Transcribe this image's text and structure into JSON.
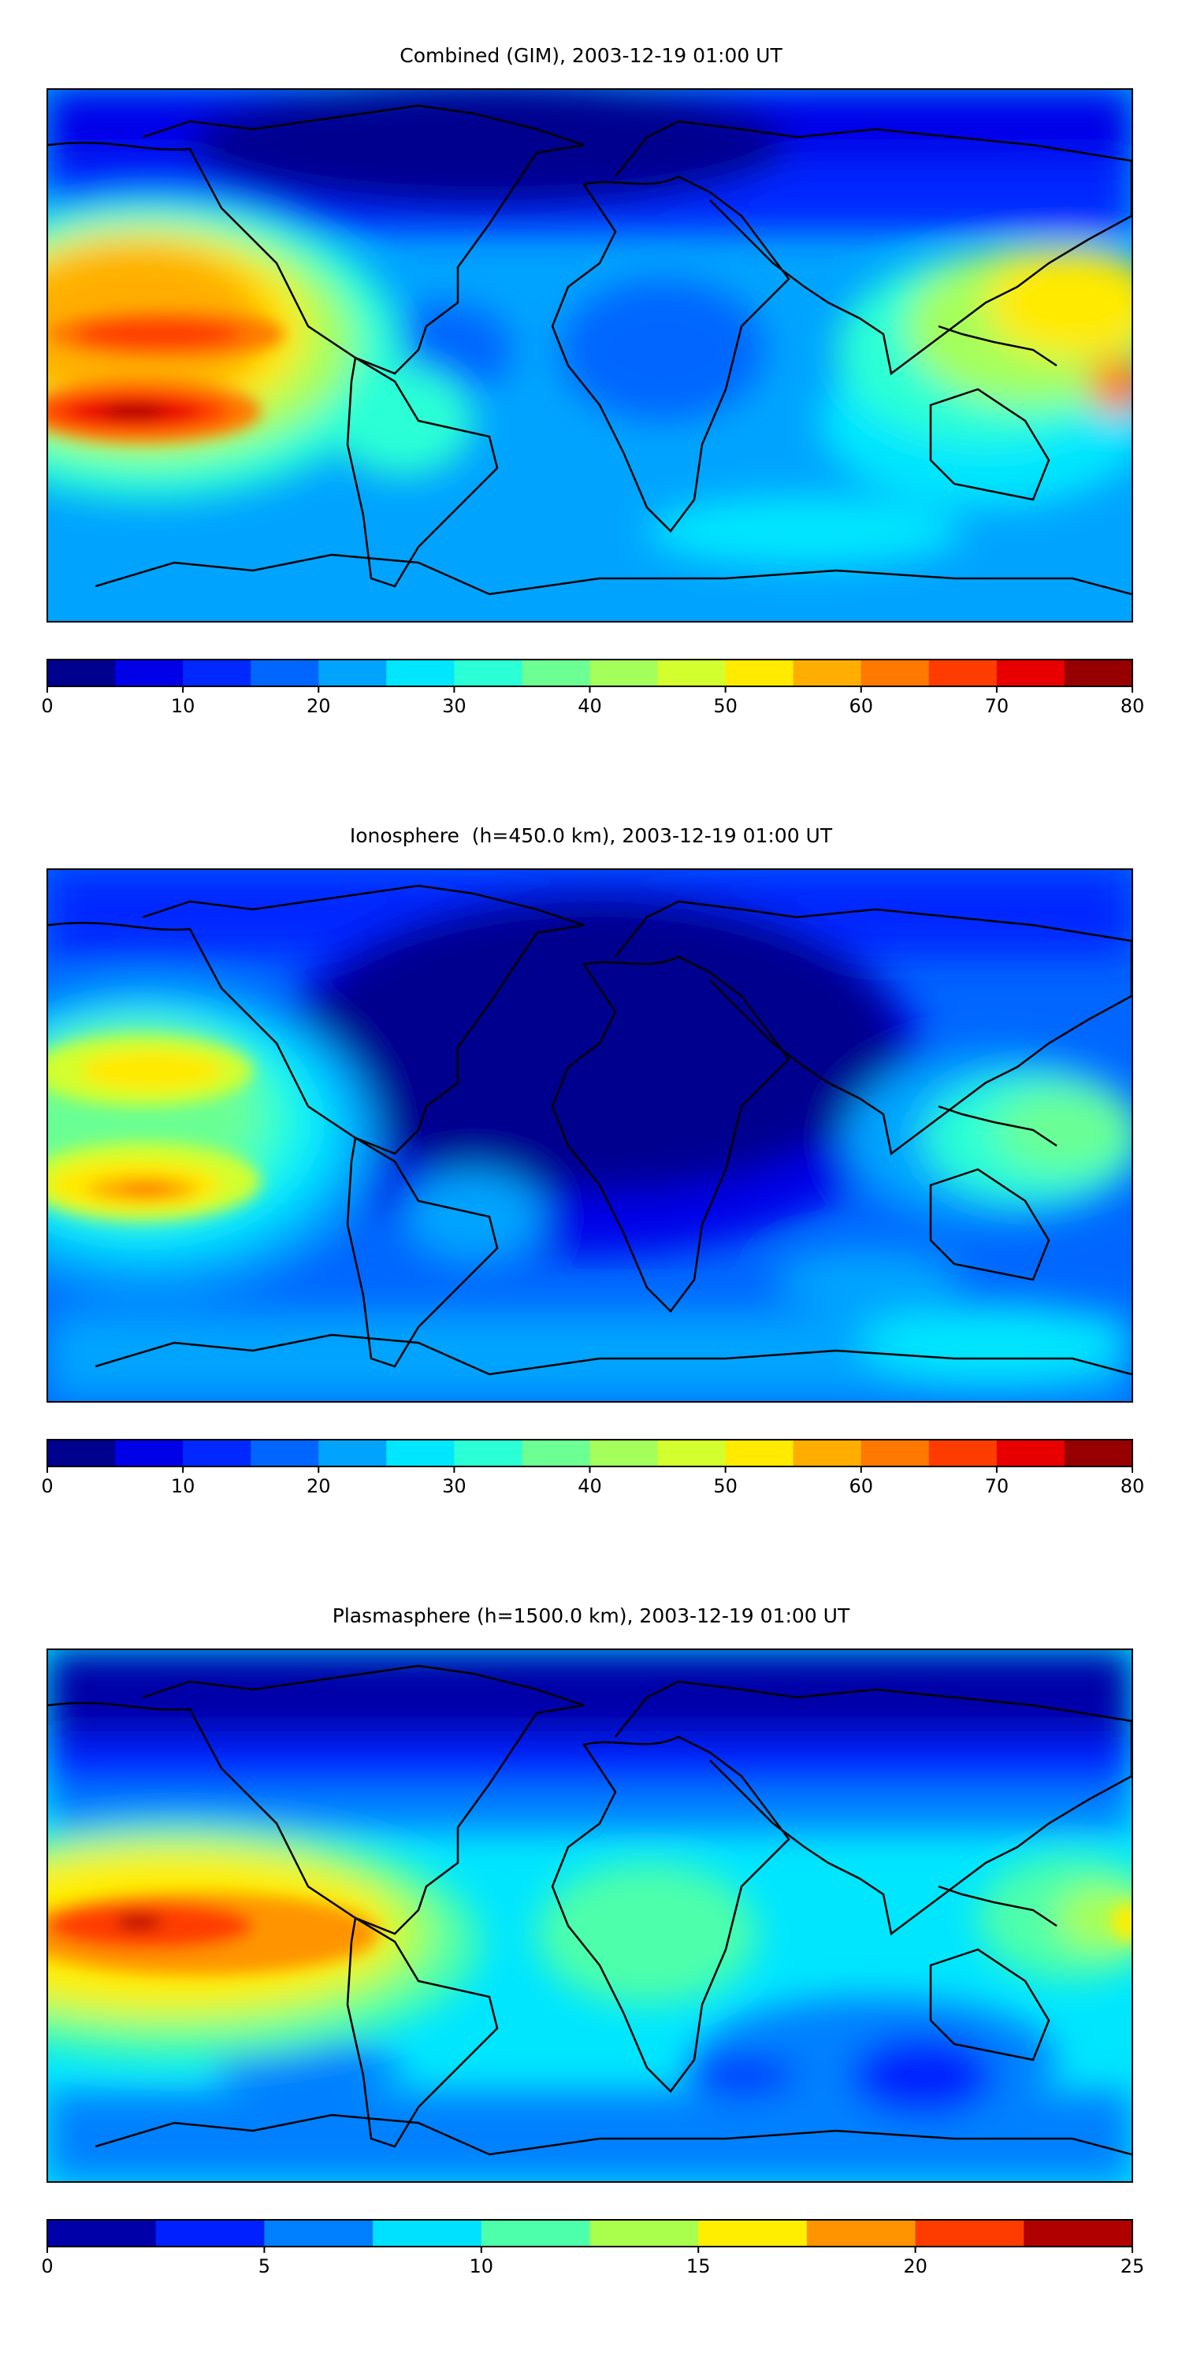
{
  "panels": [
    {
      "title": "Combined (GIM), 2003-12-19 01:00 UT",
      "colorbar": {
        "bounds": [
          0,
          5,
          10,
          15,
          20,
          25,
          30,
          35,
          40,
          45,
          50,
          55,
          60,
          65,
          70,
          75,
          80
        ],
        "colors": [
          "#00008f",
          "#0000e8",
          "#0028ff",
          "#0066ff",
          "#00a4ff",
          "#00e6ff",
          "#2affd5",
          "#6bff94",
          "#a4ff5b",
          "#d2ff2d",
          "#ffea00",
          "#ffae00",
          "#ff7800",
          "#ff3c00",
          "#e80000",
          "#970000"
        ],
        "ticks": [
          0,
          10,
          20,
          30,
          40,
          50,
          60,
          70,
          80
        ]
      }
    },
    {
      "title": "Ionosphere  (h=450.0 km), 2003-12-19 01:00 UT",
      "colorbar": {
        "bounds": [
          0,
          5,
          10,
          15,
          20,
          25,
          30,
          35,
          40,
          45,
          50,
          55,
          60,
          65,
          70,
          75,
          80
        ],
        "colors": [
          "#00008f",
          "#0000e8",
          "#0028ff",
          "#0066ff",
          "#00a4ff",
          "#00e6ff",
          "#2affd5",
          "#6bff94",
          "#a4ff5b",
          "#d2ff2d",
          "#ffea00",
          "#ffae00",
          "#ff7800",
          "#ff3c00",
          "#e80000",
          "#970000"
        ],
        "ticks": [
          0,
          10,
          20,
          30,
          40,
          50,
          60,
          70,
          80
        ]
      }
    },
    {
      "title": "Plasmasphere (h=1500.0 km), 2003-12-19 01:00 UT",
      "colorbar": {
        "bounds": [
          0,
          2.5,
          5,
          7.5,
          10,
          12.5,
          15,
          17.5,
          20,
          22.5,
          25
        ],
        "colors": [
          "#0000a8",
          "#0020ff",
          "#0080ff",
          "#00e0ff",
          "#4dffaa",
          "#aaff4d",
          "#ffee00",
          "#ff9400",
          "#ff3c00",
          "#b00000"
        ],
        "ticks": [
          0,
          5,
          10,
          15,
          20,
          25
        ]
      }
    }
  ],
  "chart_data": [
    {
      "type": "heatmap",
      "title": "Combined (GIM), 2003-12-19 01:00 UT",
      "quantity_levels": [
        0,
        5,
        10,
        15,
        20,
        25,
        30,
        35,
        40,
        45,
        50,
        55,
        60,
        65,
        70,
        75,
        80
      ],
      "colorbar_ticks": [
        0,
        10,
        20,
        30,
        40,
        50,
        60,
        70,
        80
      ],
      "features": [
        {
          "region": "eastern Pacific, south branch",
          "peak_level": 70
        },
        {
          "region": "eastern Pacific, north branch",
          "peak_level": 65
        },
        {
          "region": "western Pacific / New Guinea",
          "peak_level": 60
        },
        {
          "region": "north polar cap",
          "level": 0
        }
      ]
    },
    {
      "type": "heatmap",
      "title": "Ionosphere  (h=450.0 km), 2003-12-19 01:00 UT",
      "quantity_levels": [
        0,
        5,
        10,
        15,
        20,
        25,
        30,
        35,
        40,
        45,
        50,
        55,
        60,
        65,
        70,
        75,
        80
      ],
      "colorbar_ticks": [
        0,
        10,
        20,
        30,
        40,
        50,
        60,
        70,
        80
      ],
      "features": [
        {
          "region": "eastern Pacific, south branch",
          "peak_level": 60
        },
        {
          "region": "eastern Pacific, north branch",
          "peak_level": 50
        },
        {
          "region": "western Pacific",
          "peak_level": 50
        },
        {
          "region": "Europe / Africa",
          "level": 0
        }
      ]
    },
    {
      "type": "heatmap",
      "title": "Plasmasphere (h=1500.0 km), 2003-12-19 01:00 UT",
      "quantity_levels": [
        0,
        2.5,
        5,
        7.5,
        10,
        12.5,
        15,
        17.5,
        20,
        22.5,
        25
      ],
      "colorbar_ticks": [
        0,
        5,
        10,
        15,
        20,
        25
      ],
      "features": [
        {
          "region": "eastern Pacific",
          "peak_level": 22.5
        },
        {
          "region": "Africa",
          "peak_level": 10
        },
        {
          "region": "western Pacific",
          "peak_level": 15
        },
        {
          "region": "north polar cap",
          "level": 0
        }
      ]
    }
  ]
}
